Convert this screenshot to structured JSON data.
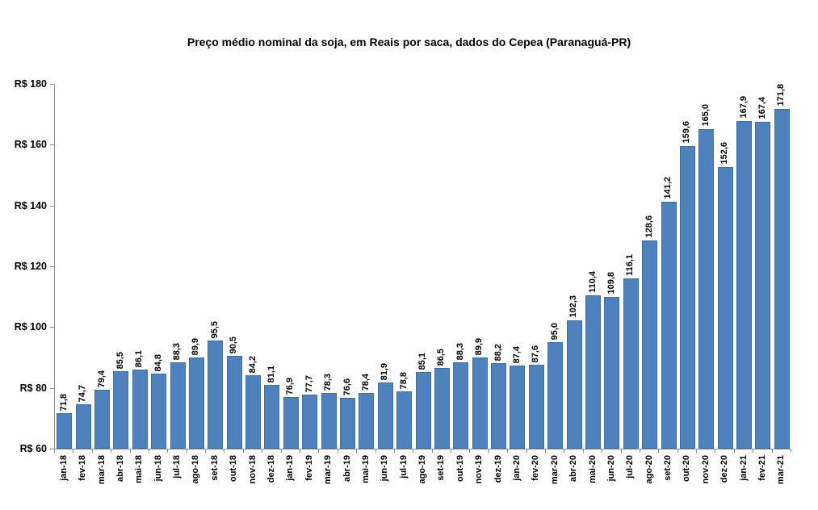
{
  "chart_data": {
    "type": "bar",
    "title": "Preço médio nominal da soja, em Reais por saca, dados do Cepea (Paranaguá-PR)",
    "categories": [
      "jan-18",
      "fev-18",
      "mar-18",
      "abr-18",
      "mai-18",
      "jun-18",
      "jul-18",
      "ago-18",
      "set-18",
      "out-18",
      "nov-18",
      "dez-18",
      "jan-19",
      "fev-19",
      "mar-19",
      "abr-19",
      "mai-19",
      "jun-19",
      "jul-19",
      "ago-19",
      "set-19",
      "out-19",
      "nov-19",
      "dez-19",
      "jan-20",
      "fev-20",
      "mar-20",
      "abr-20",
      "mai-20",
      "jun-20",
      "jul-20",
      "ago-20",
      "set-20",
      "out-20",
      "nov-20",
      "dez-20",
      "jan-21",
      "fev-21",
      "mar-21"
    ],
    "values": [
      71.8,
      74.7,
      79.4,
      85.5,
      86.1,
      84.8,
      88.3,
      89.9,
      95.5,
      90.5,
      84.2,
      81.1,
      76.9,
      77.7,
      78.3,
      76.6,
      78.4,
      81.9,
      78.8,
      85.1,
      86.5,
      88.3,
      89.9,
      88.2,
      87.4,
      87.6,
      95.0,
      102.3,
      110.4,
      109.8,
      116.1,
      128.6,
      141.2,
      159.6,
      165.0,
      152.6,
      167.9,
      167.4,
      171.8
    ],
    "value_labels": [
      "71,8",
      "74,7",
      "79,4",
      "85,5",
      "86,1",
      "84,8",
      "88,3",
      "89,9",
      "95,5",
      "90,5",
      "84,2",
      "81,1",
      "76,9",
      "77,7",
      "78,3",
      "76,6",
      "78,4",
      "81,9",
      "78,8",
      "85,1",
      "86,5",
      "88,3",
      "89,9",
      "88,2",
      "87,4",
      "87,6",
      "95,0",
      "102,3",
      "110,4",
      "109,8",
      "116,1",
      "128,6",
      "141,2",
      "159,6",
      "165,0",
      "152,6",
      "167,9",
      "167,4",
      "171,8"
    ],
    "y_tick_labels": [
      "R$ 60",
      "R$ 80",
      "R$ 100",
      "R$ 120",
      "R$ 140",
      "R$ 160",
      "R$ 180"
    ],
    "ylim": [
      60,
      180
    ],
    "y_tick_step": 20,
    "xlabel": "",
    "ylabel": "",
    "grid": false,
    "legend": "none",
    "colors": {
      "bar_fill": "#4F81BD",
      "bar_border": "#3D6DA3",
      "axis": "#8C8C8C",
      "text": "#000000",
      "background": "#FFFFFF"
    }
  }
}
